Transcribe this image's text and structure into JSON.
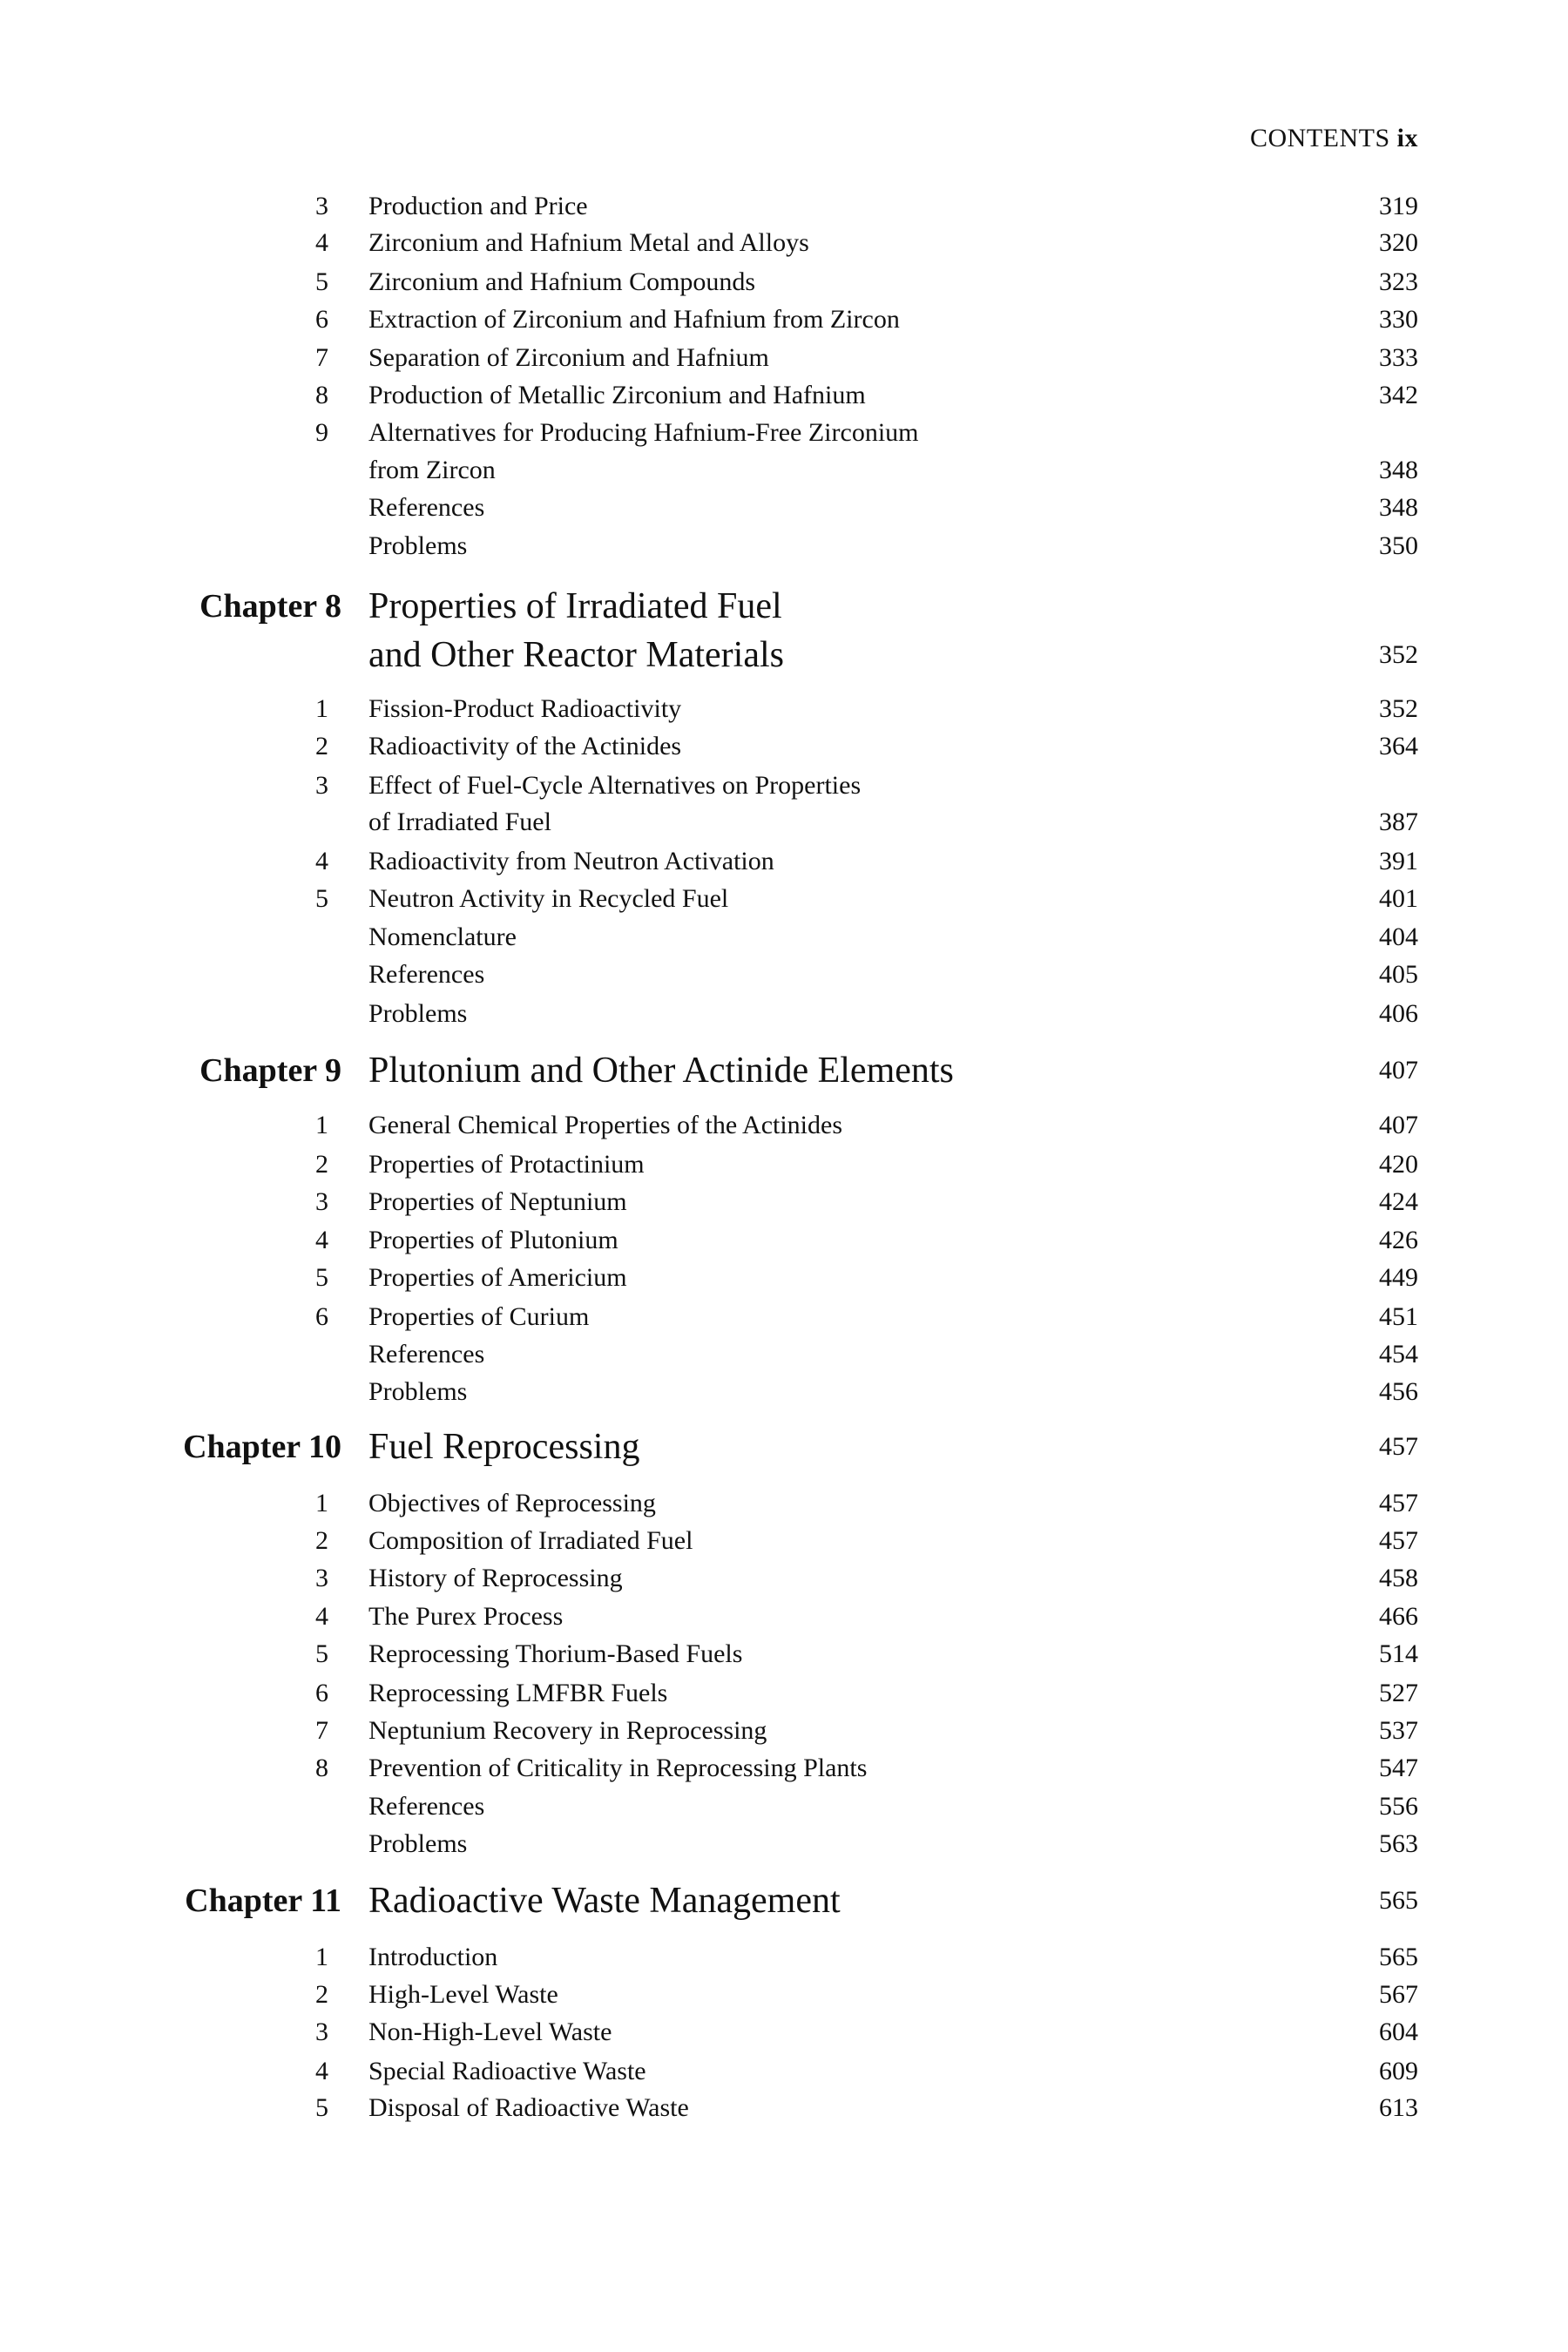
{
  "header": {
    "label": "CONTENTS",
    "page_numeral": "ix"
  },
  "entries": [
    {
      "type": "section",
      "num": "3",
      "title": "Production and Price",
      "page": "319"
    },
    {
      "type": "section",
      "num": "4",
      "title": "Zirconium and Hafnium Metal and Alloys",
      "page": "320"
    },
    {
      "type": "section",
      "num": "5",
      "title": "Zirconium and Hafnium Compounds",
      "page": "323"
    },
    {
      "type": "section",
      "num": "6",
      "title": "Extraction of Zirconium and Hafnium from Zircon",
      "page": "330"
    },
    {
      "type": "section",
      "num": "7",
      "title": "Separation of Zirconium and Hafnium",
      "page": "333"
    },
    {
      "type": "section",
      "num": "8",
      "title": "Production of Metallic Zirconium and Hafnium",
      "page": "342"
    },
    {
      "type": "section",
      "num": "9",
      "title": "Alternatives for Producing Hafnium-Free Zirconium",
      "page": ""
    },
    {
      "type": "section",
      "num": "",
      "title": "from Zircon",
      "page": "348"
    },
    {
      "type": "section",
      "num": "",
      "title": "References",
      "page": "348"
    },
    {
      "type": "section",
      "num": "",
      "title": "Problems",
      "page": "350"
    },
    {
      "type": "chapter",
      "label": "Chapter 8",
      "title": "Properties of Irradiated Fuel",
      "page": ""
    },
    {
      "type": "chapter",
      "label": "",
      "title": "and Other Reactor Materials",
      "page": "352"
    },
    {
      "type": "section",
      "num": "1",
      "title": "Fission-Product Radioactivity",
      "page": "352"
    },
    {
      "type": "section",
      "num": "2",
      "title": "Radioactivity of the Actinides",
      "page": "364"
    },
    {
      "type": "section",
      "num": "3",
      "title": "Effect of Fuel-Cycle Alternatives on Properties",
      "page": ""
    },
    {
      "type": "section",
      "num": "",
      "title": "of Irradiated Fuel",
      "page": "387"
    },
    {
      "type": "section",
      "num": "4",
      "title": "Radioactivity from Neutron Activation",
      "page": "391"
    },
    {
      "type": "section",
      "num": "5",
      "title": "Neutron Activity in Recycled Fuel",
      "page": "401"
    },
    {
      "type": "section",
      "num": "",
      "title": "Nomenclature",
      "page": "404"
    },
    {
      "type": "section",
      "num": "",
      "title": "References",
      "page": "405"
    },
    {
      "type": "section",
      "num": "",
      "title": "Problems",
      "page": "406"
    },
    {
      "type": "chapter",
      "label": "Chapter 9",
      "title": "Plutonium and Other Actinide Elements",
      "page": "407"
    },
    {
      "type": "section",
      "num": "1",
      "title": "General Chemical Properties of the Actinides",
      "page": "407"
    },
    {
      "type": "section",
      "num": "2",
      "title": "Properties of Protactinium",
      "page": "420"
    },
    {
      "type": "section",
      "num": "3",
      "title": "Properties of Neptunium",
      "page": "424"
    },
    {
      "type": "section",
      "num": "4",
      "title": "Properties of Plutonium",
      "page": "426"
    },
    {
      "type": "section",
      "num": "5",
      "title": "Properties of Americium",
      "page": "449"
    },
    {
      "type": "section",
      "num": "6",
      "title": "Properties of Curium",
      "page": "451"
    },
    {
      "type": "section",
      "num": "",
      "title": "References",
      "page": "454"
    },
    {
      "type": "section",
      "num": "",
      "title": "Problems",
      "page": "456"
    },
    {
      "type": "chapter",
      "label": "Chapter 10",
      "title": "Fuel Reprocessing",
      "page": "457"
    },
    {
      "type": "section",
      "num": "1",
      "title": "Objectives of Reprocessing",
      "page": "457"
    },
    {
      "type": "section",
      "num": "2",
      "title": "Composition of Irradiated Fuel",
      "page": "457"
    },
    {
      "type": "section",
      "num": "3",
      "title": "History of Reprocessing",
      "page": "458"
    },
    {
      "type": "section",
      "num": "4",
      "title": "The Purex Process",
      "page": "466"
    },
    {
      "type": "section",
      "num": "5",
      "title": "Reprocessing Thorium-Based Fuels",
      "page": "514"
    },
    {
      "type": "section",
      "num": "6",
      "title": "Reprocessing LMFBR Fuels",
      "page": "527"
    },
    {
      "type": "section",
      "num": "7",
      "title": "Neptunium Recovery in Reprocessing",
      "page": "537"
    },
    {
      "type": "section",
      "num": "8",
      "title": "Prevention of Criticality in Reprocessing Plants",
      "page": "547"
    },
    {
      "type": "section",
      "num": "",
      "title": "References",
      "page": "556"
    },
    {
      "type": "section",
      "num": "",
      "title": "Problems",
      "page": "563"
    },
    {
      "type": "chapter",
      "label": "Chapter 11",
      "title": "Radioactive Waste Management",
      "page": "565"
    },
    {
      "type": "section",
      "num": "1",
      "title": "Introduction",
      "page": "565"
    },
    {
      "type": "section",
      "num": "2",
      "title": "High-Level Waste",
      "page": "567"
    },
    {
      "type": "section",
      "num": "3",
      "title": "Non-High-Level Waste",
      "page": "604"
    },
    {
      "type": "section",
      "num": "4",
      "title": "Special Radioactive Waste",
      "page": "609"
    },
    {
      "type": "section",
      "num": "5",
      "title": "Disposal of Radioactive Waste",
      "page": "613"
    }
  ]
}
